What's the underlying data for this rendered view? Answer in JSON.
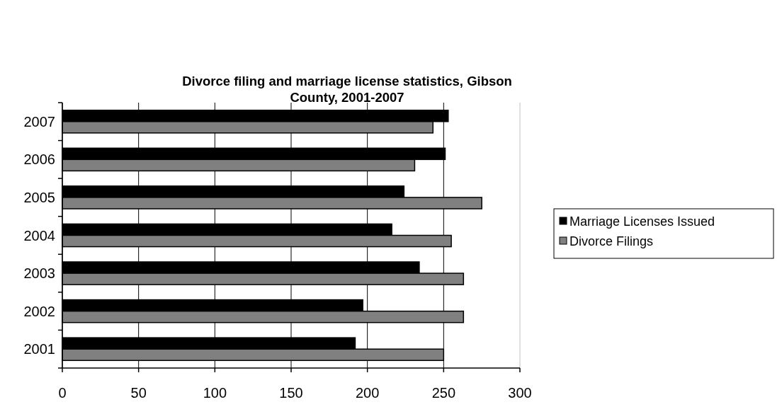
{
  "chart_data": {
    "type": "bar",
    "orientation": "horizontal",
    "title": "Divorce filing and marriage license statistics, Gibson\nCounty, 2001-2007",
    "categories": [
      "2007",
      "2006",
      "2005",
      "2004",
      "2003",
      "2002",
      "2001"
    ],
    "series": [
      {
        "name": "Marriage Licenses Issued",
        "color": "#000000",
        "values": [
          253,
          251,
          224,
          216,
          234,
          197,
          192
        ]
      },
      {
        "name": "Divorce Filings",
        "color": "#808080",
        "values": [
          243,
          231,
          275,
          255,
          263,
          263,
          250
        ]
      }
    ],
    "xlim": [
      0,
      300
    ],
    "xticks": [
      0,
      50,
      100,
      150,
      200,
      250,
      300
    ],
    "grid": "x",
    "legend": "right"
  }
}
